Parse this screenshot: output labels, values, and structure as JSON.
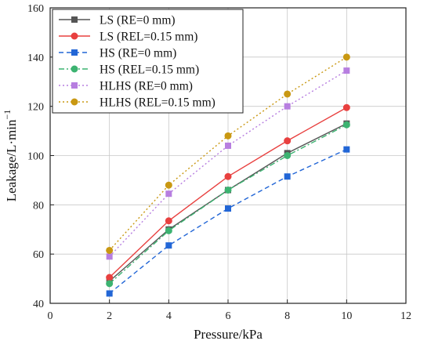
{
  "chart_data": {
    "type": "line",
    "xlabel": "Pressure/kPa",
    "ylabel": "Leakage/L·min",
    "ylabel_superscript": "−1",
    "xlim": [
      0,
      12
    ],
    "ylim": [
      40,
      160
    ],
    "xticks": [
      "0",
      "2",
      "4",
      "6",
      "8",
      "10",
      "12"
    ],
    "yticks": [
      "40",
      "60",
      "80",
      "100",
      "120",
      "140",
      "160"
    ],
    "grid": true,
    "legend_position": "top-left",
    "x": [
      2,
      4,
      6,
      8,
      10
    ],
    "series": [
      {
        "name": "LS (RE=0 mm)",
        "values": [
          49,
          70,
          86,
          101,
          113
        ],
        "color": "#555555",
        "dash": "solid",
        "marker": "square"
      },
      {
        "name": "LS (REL=0.15 mm)",
        "values": [
          50.5,
          73.5,
          91.5,
          106,
          119.5
        ],
        "color": "#e8403f",
        "dash": "solid",
        "marker": "circle"
      },
      {
        "name": "HS (RE=0 mm)",
        "values": [
          44,
          63.5,
          78.5,
          91.5,
          102.5
        ],
        "color": "#2266d6",
        "dash": "dashed",
        "marker": "square"
      },
      {
        "name": "HS (REL=0.15 mm)",
        "values": [
          48,
          69.5,
          86,
          100,
          112.5
        ],
        "color": "#3cb371",
        "dash": "dashdot",
        "marker": "circle"
      },
      {
        "name": "HLHS (RE=0 mm)",
        "values": [
          59,
          84.5,
          104,
          120,
          134.5
        ],
        "color": "#b77ee0",
        "dash": "dotted",
        "marker": "square"
      },
      {
        "name": "HLHS (REL=0.15 mm)",
        "values": [
          61.5,
          88,
          108,
          125,
          140
        ],
        "color": "#c99812",
        "dash": "dotted",
        "marker": "circle"
      }
    ]
  }
}
